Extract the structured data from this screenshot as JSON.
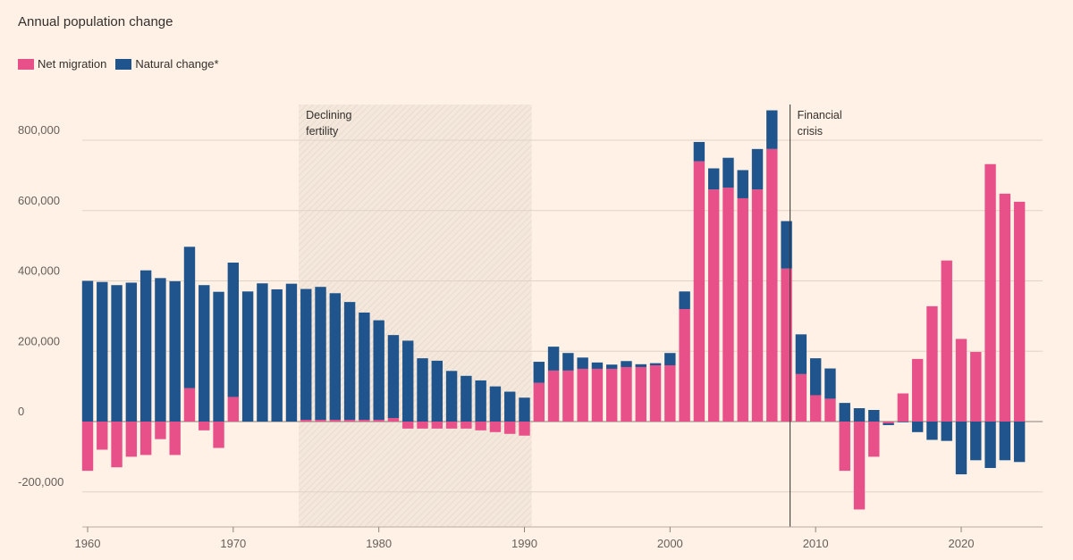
{
  "title": "Annual population change",
  "legend": [
    {
      "label": "Net migration",
      "color": "#e8508a"
    },
    {
      "label": "Natural change*",
      "color": "#1f558c"
    }
  ],
  "chart_data": {
    "type": "bar",
    "stacked": true,
    "title": "Annual population change",
    "x": [
      1960,
      1961,
      1962,
      1963,
      1964,
      1965,
      1966,
      1967,
      1968,
      1969,
      1970,
      1971,
      1972,
      1973,
      1974,
      1975,
      1976,
      1977,
      1978,
      1979,
      1980,
      1981,
      1982,
      1983,
      1984,
      1985,
      1986,
      1987,
      1988,
      1989,
      1990,
      1991,
      1992,
      1993,
      1994,
      1995,
      1996,
      1997,
      1998,
      1999,
      2000,
      2001,
      2002,
      2003,
      2004,
      2005,
      2006,
      2007,
      2008,
      2009,
      2010,
      2011,
      2012,
      2013,
      2014,
      2015,
      2016,
      2017,
      2018,
      2019,
      2020,
      2021,
      2022,
      2023,
      2024
    ],
    "series": [
      {
        "name": "Net migration",
        "color": "#e8508a",
        "values": [
          -140000,
          -80000,
          -130000,
          -100000,
          -95000,
          -50000,
          -95000,
          95000,
          -25000,
          -75000,
          70000,
          0,
          0,
          0,
          0,
          5000,
          5000,
          5000,
          5000,
          5000,
          5000,
          10000,
          -20000,
          -20000,
          -20000,
          -20000,
          -20000,
          -25000,
          -30000,
          -35000,
          -40000,
          110000,
          145000,
          145000,
          150000,
          150000,
          150000,
          155000,
          155000,
          160000,
          160000,
          320000,
          740000,
          660000,
          665000,
          635000,
          660000,
          775000,
          435000,
          135000,
          75000,
          65000,
          -140000,
          -250000,
          -100000,
          -5000,
          80000,
          178000,
          328000,
          458000,
          235000,
          198000,
          732000,
          648000,
          625000
        ]
      },
      {
        "name": "Natural change*",
        "color": "#1f558c",
        "values": [
          400000,
          397000,
          388000,
          395000,
          430000,
          408000,
          399000,
          402000,
          388000,
          369000,
          382000,
          370000,
          393000,
          376000,
          392000,
          372000,
          378000,
          360000,
          335000,
          305000,
          283000,
          236000,
          230000,
          180000,
          173000,
          144000,
          130000,
          117000,
          100000,
          85000,
          68000,
          60000,
          68000,
          50000,
          32000,
          18000,
          12000,
          17000,
          8000,
          6000,
          35000,
          50000,
          55000,
          60000,
          85000,
          80000,
          115000,
          110000,
          135000,
          113000,
          105000,
          86000,
          53000,
          38000,
          33000,
          -5000,
          -2000,
          -30000,
          -52000,
          -55000,
          -150000,
          -110000,
          -132000,
          -110000,
          -115000
        ]
      }
    ],
    "ylim": [
      -300000,
      900000
    ],
    "yticks": [
      -200000,
      0,
      200000,
      400000,
      600000,
      800000
    ],
    "ytick_labels": [
      "-200,000",
      "0",
      "200,000",
      "400,000",
      "600,000",
      "800,000"
    ],
    "xticks": [
      1960,
      1970,
      1980,
      1990,
      2000,
      2010,
      2020
    ],
    "xtick_labels": [
      "1960",
      "1970",
      "1980",
      "1990",
      "2000",
      "2010",
      "2020"
    ],
    "grid": true,
    "legend_position": "top-left",
    "annotations": [
      {
        "label_lines": [
          "Declining",
          "fertility"
        ],
        "kind": "shaded-range",
        "from": 1974.5,
        "to": 1990.5
      },
      {
        "label_lines": [
          "Financial",
          "crisis"
        ],
        "kind": "vertical-line",
        "at": 2008
      }
    ]
  }
}
